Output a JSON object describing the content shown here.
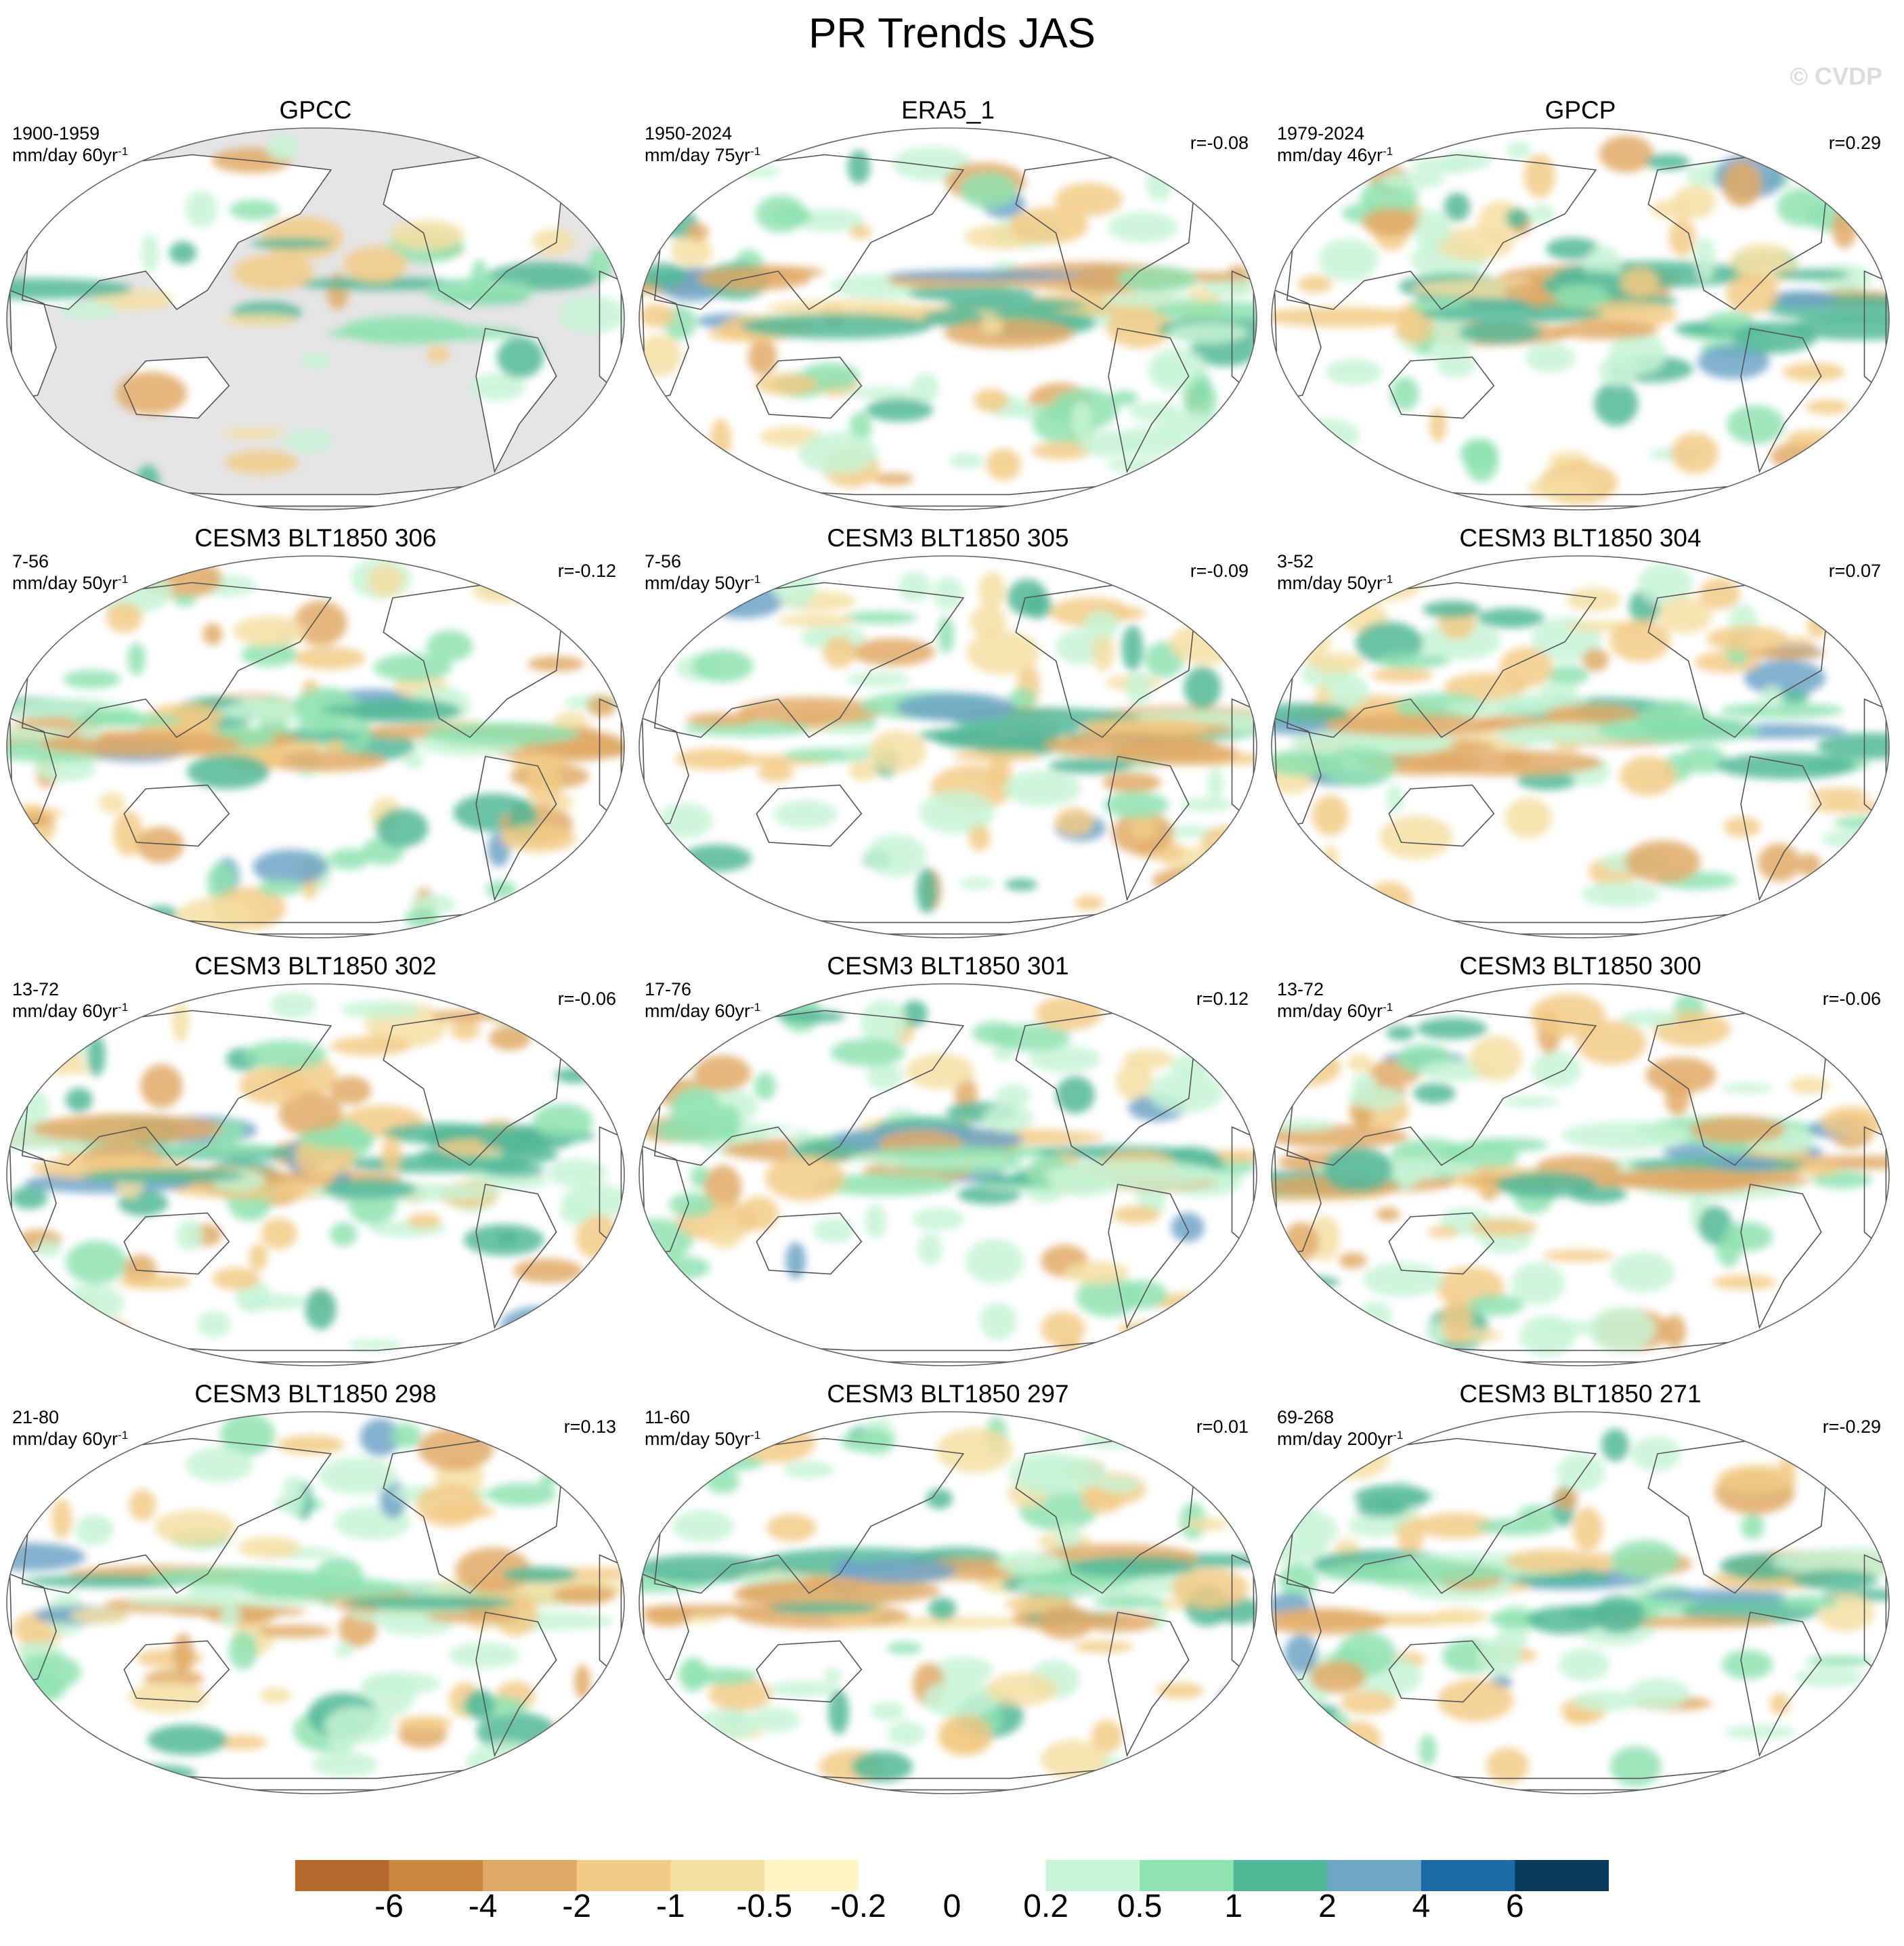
{
  "figure": {
    "title": "PR Trends JAS",
    "watermark": "© CVDP"
  },
  "panels": [
    {
      "title": "GPCC",
      "years": "1900-1959",
      "units": "mm/day 60yr",
      "units_exp": "-1",
      "corr": "",
      "land_only": true
    },
    {
      "title": "ERA5_1",
      "years": "1950-2024",
      "units": "mm/day 75yr",
      "units_exp": "-1",
      "corr": "r=-0.08"
    },
    {
      "title": "GPCP",
      "years": "1979-2024",
      "units": "mm/day 46yr",
      "units_exp": "-1",
      "corr": "r=0.29"
    },
    {
      "title": "CESM3 BLT1850 306",
      "years": "7-56",
      "units": "mm/day 50yr",
      "units_exp": "-1",
      "corr": "r=-0.12"
    },
    {
      "title": "CESM3 BLT1850 305",
      "years": "7-56",
      "units": "mm/day 50yr",
      "units_exp": "-1",
      "corr": "r=-0.09"
    },
    {
      "title": "CESM3 BLT1850 304",
      "years": "3-52",
      "units": "mm/day 50yr",
      "units_exp": "-1",
      "corr": "r=0.07"
    },
    {
      "title": "CESM3 BLT1850 302",
      "years": "13-72",
      "units": "mm/day 60yr",
      "units_exp": "-1",
      "corr": "r=-0.06"
    },
    {
      "title": "CESM3 BLT1850 301",
      "years": "17-76",
      "units": "mm/day 60yr",
      "units_exp": "-1",
      "corr": "r=0.12"
    },
    {
      "title": "CESM3 BLT1850 300",
      "years": "13-72",
      "units": "mm/day 60yr",
      "units_exp": "-1",
      "corr": "r=-0.06"
    },
    {
      "title": "CESM3 BLT1850 298",
      "years": "21-80",
      "units": "mm/day 60yr",
      "units_exp": "-1",
      "corr": "r=0.13"
    },
    {
      "title": "CESM3 BLT1850 297",
      "years": "11-60",
      "units": "mm/day 50yr",
      "units_exp": "-1",
      "corr": "r=0.01"
    },
    {
      "title": "CESM3 BLT1850 271",
      "years": "69-268",
      "units": "mm/day 200yr",
      "units_exp": "-1",
      "corr": "r=-0.29"
    }
  ],
  "colorbar": {
    "labels": [
      "-6",
      "-4",
      "-2",
      "-1",
      "-0.5",
      "-0.2",
      "0",
      "0.2",
      "0.5",
      "1",
      "2",
      "4",
      "6"
    ],
    "colors": [
      "#b5682b",
      "#cc8741",
      "#e0aa66",
      "#f2cb86",
      "#f5dfa3",
      "#fff3c2",
      "#ffffff",
      "#ffffff",
      "#c7f5d5",
      "#8fe3b0",
      "#52b998",
      "#6fa5c7",
      "#1a6aa6",
      "#0a3a5e"
    ]
  },
  "colors": {
    "ocean_mask": "#e5e5e5",
    "coastline": "#555555",
    "dry": "#e0aa66",
    "wet": "#52b998"
  }
}
